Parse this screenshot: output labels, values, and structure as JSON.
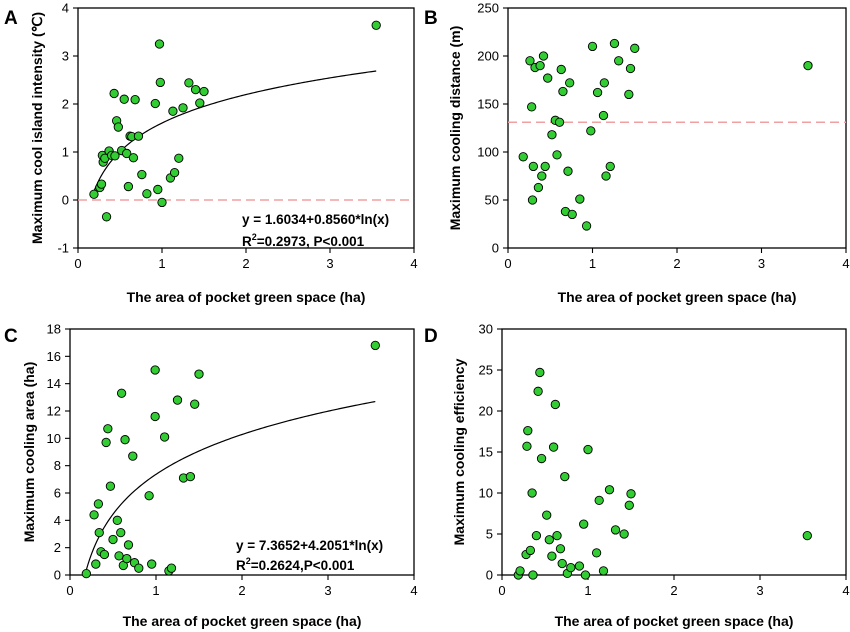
{
  "chart_data": [
    {
      "panel": "A",
      "type": "scatter",
      "xlabel": "The area of pocket green space (ha)",
      "ylabel": "Maximum cool island intensity (℃)",
      "xlim": [
        0,
        4
      ],
      "ylim": [
        -1,
        4
      ],
      "xticks": [
        "0",
        "1",
        "2",
        "3",
        "4"
      ],
      "yticks": [
        "-1",
        "0",
        "1",
        "2",
        "3",
        "4"
      ],
      "x": [
        0.19,
        0.26,
        0.28,
        0.29,
        0.3,
        0.32,
        0.34,
        0.37,
        0.4,
        0.43,
        0.44,
        0.46,
        0.48,
        0.52,
        0.55,
        0.58,
        0.6,
        0.62,
        0.64,
        0.66,
        0.68,
        0.72,
        0.76,
        0.82,
        0.92,
        0.95,
        0.97,
        0.98,
        1.0,
        1.1,
        1.13,
        1.15,
        1.2,
        1.25,
        1.32,
        1.4,
        1.45,
        1.5,
        3.55
      ],
      "y": [
        0.12,
        0.26,
        0.33,
        0.93,
        0.79,
        0.87,
        -0.35,
        1.02,
        0.93,
        2.22,
        0.92,
        1.65,
        1.52,
        1.03,
        2.1,
        0.97,
        0.28,
        1.33,
        1.32,
        0.88,
        2.09,
        1.33,
        0.53,
        0.13,
        2.01,
        0.22,
        3.25,
        2.45,
        -0.05,
        0.46,
        1.85,
        0.57,
        0.87,
        1.92,
        2.44,
        2.3,
        2.02,
        2.26,
        3.64
      ],
      "fit": {
        "a": 1.6034,
        "b": 0.856,
        "form": "log"
      },
      "reference_line": 0,
      "equation": "y = 1.6034+0.8560*ln(x)",
      "stats_prefix": "R",
      "stats_sup": "2",
      "stats_rest": "=0.2973, P<0.001"
    },
    {
      "panel": "B",
      "type": "scatter",
      "xlabel": "The area of pocket green space (ha)",
      "ylabel": "Maximum cooling distance (m)",
      "xlim": [
        0,
        4
      ],
      "ylim": [
        0,
        250
      ],
      "xticks": [
        "0",
        "1",
        "2",
        "3",
        "4"
      ],
      "yticks": [
        "0",
        "50",
        "100",
        "150",
        "200",
        "250"
      ],
      "x": [
        0.18,
        0.26,
        0.28,
        0.29,
        0.3,
        0.32,
        0.36,
        0.38,
        0.4,
        0.42,
        0.44,
        0.47,
        0.52,
        0.56,
        0.58,
        0.61,
        0.63,
        0.65,
        0.68,
        0.71,
        0.73,
        0.76,
        0.85,
        0.93,
        0.98,
        1.0,
        1.06,
        1.13,
        1.14,
        1.16,
        1.21,
        1.26,
        1.31,
        1.43,
        1.45,
        1.5,
        3.55
      ],
      "y": [
        95,
        195,
        147,
        50,
        85,
        188,
        63,
        190,
        75,
        200,
        85,
        177,
        118,
        133,
        97,
        131,
        186,
        163,
        38,
        80,
        172,
        35,
        51,
        23,
        122,
        210,
        162,
        138,
        172,
        75,
        85,
        213,
        195,
        160,
        187,
        208,
        190
      ],
      "fit": null,
      "reference_line": 131,
      "equation": "",
      "stats_prefix": "",
      "stats_sup": "",
      "stats_rest": ""
    },
    {
      "panel": "C",
      "type": "scatter",
      "xlabel": "The area of pocket green space (ha)",
      "ylabel": "Maximum cooling area (ha)",
      "xlim": [
        0,
        4
      ],
      "ylim": [
        0,
        18
      ],
      "xticks": [
        "0",
        "1",
        "2",
        "3",
        "4"
      ],
      "yticks": [
        "0",
        "2",
        "4",
        "6",
        "8",
        "10",
        "12",
        "14",
        "16",
        "18"
      ],
      "x": [
        0.19,
        0.28,
        0.3,
        0.33,
        0.34,
        0.36,
        0.4,
        0.42,
        0.44,
        0.47,
        0.5,
        0.55,
        0.57,
        0.59,
        0.6,
        0.62,
        0.64,
        0.66,
        0.68,
        0.73,
        0.75,
        0.8,
        0.92,
        0.95,
        0.99,
        0.99,
        1.1,
        1.15,
        1.18,
        1.25,
        1.32,
        1.4,
        1.45,
        1.5,
        3.55
      ],
      "y": [
        0.1,
        4.4,
        0.8,
        5.2,
        3.1,
        1.7,
        1.5,
        9.7,
        10.7,
        6.5,
        2.6,
        4.0,
        1.4,
        3.1,
        13.3,
        0.7,
        9.9,
        1.2,
        2.2,
        8.7,
        0.9,
        0.5,
        5.8,
        0.8,
        15.0,
        11.6,
        10.1,
        0.3,
        0.5,
        12.8,
        7.1,
        7.2,
        12.5,
        14.7,
        16.8
      ],
      "fit": {
        "a": 7.3652,
        "b": 4.2051,
        "form": "log"
      },
      "reference_line": null,
      "equation": "y = 7.3652+4.2051*ln(x)",
      "stats_prefix": "R",
      "stats_sup": "2",
      "stats_rest": "=0.2624,P<0.001"
    },
    {
      "panel": "D",
      "type": "scatter",
      "xlabel": "The area of pocket green space (ha)",
      "ylabel": "Maximum cooling efficiency",
      "xlim": [
        0,
        4
      ],
      "ylim": [
        0,
        30
      ],
      "xticks": [
        "0",
        "1",
        "2",
        "3",
        "4"
      ],
      "yticks": [
        "0",
        "5",
        "10",
        "15",
        "20",
        "25",
        "30"
      ],
      "x": [
        0.19,
        0.21,
        0.28,
        0.29,
        0.3,
        0.33,
        0.35,
        0.36,
        0.4,
        0.42,
        0.44,
        0.46,
        0.52,
        0.55,
        0.58,
        0.6,
        0.62,
        0.64,
        0.68,
        0.7,
        0.73,
        0.76,
        0.8,
        0.9,
        0.95,
        0.97,
        1.0,
        1.1,
        1.13,
        1.18,
        1.25,
        1.32,
        1.42,
        1.48,
        1.5,
        3.55
      ],
      "y": [
        0.0,
        0.5,
        2.5,
        15.7,
        17.6,
        3.0,
        10.0,
        0.0,
        4.8,
        22.4,
        24.7,
        14.2,
        7.3,
        4.3,
        2.3,
        15.6,
        20.8,
        4.8,
        3.2,
        1.4,
        12.0,
        0.2,
        0.9,
        1.1,
        6.2,
        0.0,
        15.3,
        2.7,
        9.1,
        0.5,
        10.4,
        5.5,
        5.0,
        8.5,
        9.9,
        4.8
      ],
      "fit": null,
      "reference_line": null,
      "equation": "",
      "stats_prefix": "",
      "stats_sup": "",
      "stats_rest": ""
    }
  ]
}
